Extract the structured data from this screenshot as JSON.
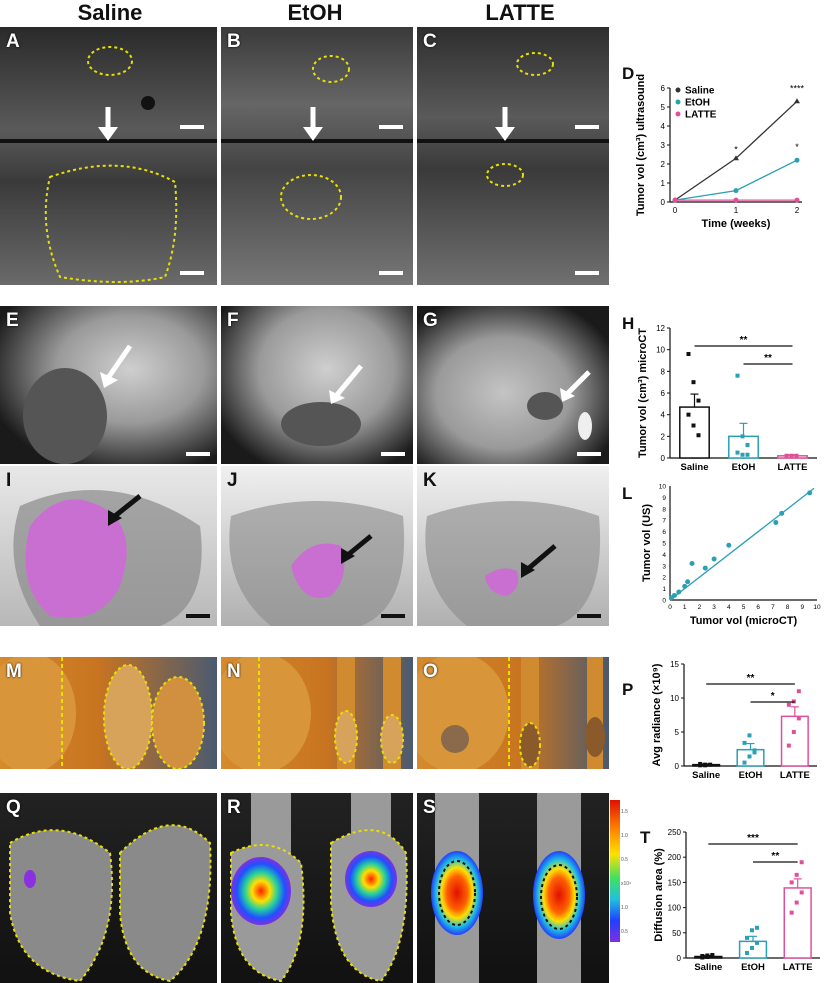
{
  "columns": [
    "Saline",
    "EtOH",
    "LATTE"
  ],
  "panel_labels": [
    "A",
    "B",
    "C",
    "D",
    "E",
    "F",
    "G",
    "H",
    "I",
    "J",
    "K",
    "L",
    "M",
    "N",
    "O",
    "P",
    "Q",
    "R",
    "S",
    "T"
  ],
  "chart_data": [
    {
      "id": "D",
      "type": "line",
      "title": "",
      "xlabel": "Time (weeks)",
      "ylabel": "Tumor vol (cm³) ultrasound",
      "x": [
        0,
        1,
        2
      ],
      "xticks": [
        "0",
        "1",
        "2"
      ],
      "yticks": [
        "0",
        "1",
        "2",
        "3",
        "4",
        "5",
        "6"
      ],
      "ylim": [
        0,
        6
      ],
      "legend_position": "top-left",
      "series": [
        {
          "name": "Saline",
          "values": [
            0.1,
            2.3,
            5.3
          ],
          "color": "#333333"
        },
        {
          "name": "EtOH",
          "values": [
            0.1,
            0.6,
            2.2
          ],
          "color": "#2aa0b5"
        },
        {
          "name": "LATTE",
          "values": [
            0.1,
            0.1,
            0.1
          ],
          "color": "#e0509a"
        }
      ],
      "annotations": [
        "*",
        "****",
        "*"
      ]
    },
    {
      "id": "H",
      "type": "bar",
      "ylabel": "Tumor vol (cm³) microCT",
      "categories": [
        "Saline",
        "EtOH",
        "LATTE"
      ],
      "values": [
        4.7,
        2.0,
        0.2
      ],
      "errors": [
        1.2,
        1.2,
        0.1
      ],
      "yticks": [
        "0",
        "2",
        "4",
        "6",
        "8",
        "10",
        "12"
      ],
      "ylim": [
        0,
        12
      ],
      "points": [
        [
          9.6,
          7.0,
          5.3,
          4.0,
          3.0,
          2.1
        ],
        [
          7.6,
          2.0,
          1.2,
          0.5,
          0.3,
          0.3
        ],
        [
          0.2,
          0.2,
          0.2,
          0.2,
          0.2,
          0.2
        ]
      ],
      "colors": [
        "#111111",
        "#2aa0b5",
        "#e0509a"
      ],
      "significance": [
        "**",
        "**"
      ]
    },
    {
      "id": "L",
      "type": "scatter",
      "xlabel": "Tumor vol (microCT)",
      "ylabel": "Tumor vol (US)",
      "xticks": [
        "0",
        "1",
        "2",
        "3",
        "4",
        "5",
        "6",
        "7",
        "8",
        "9",
        "10"
      ],
      "yticks": [
        "0",
        "1",
        "2",
        "3",
        "4",
        "5",
        "6",
        "7",
        "8",
        "9",
        "10"
      ],
      "xlim": [
        0,
        10
      ],
      "ylim": [
        0,
        10
      ],
      "points": [
        [
          0.1,
          0.2
        ],
        [
          0.3,
          0.4
        ],
        [
          0.6,
          0.7
        ],
        [
          1.0,
          1.2
        ],
        [
          1.2,
          1.6
        ],
        [
          1.5,
          3.2
        ],
        [
          2.4,
          2.8
        ],
        [
          3.0,
          3.6
        ],
        [
          4.0,
          4.8
        ],
        [
          7.2,
          6.8
        ],
        [
          7.6,
          7.6
        ],
        [
          9.5,
          9.4
        ]
      ],
      "fit": [
        [
          0,
          0
        ],
        [
          9.8,
          9.8
        ]
      ],
      "color": "#2aa0b5"
    },
    {
      "id": "P",
      "type": "bar",
      "ylabel": "Avg radiance (×10⁹)",
      "categories": [
        "Saline",
        "EtOH",
        "LATTE"
      ],
      "values": [
        0.2,
        2.4,
        7.3
      ],
      "errors": [
        0.1,
        0.9,
        1.4
      ],
      "yticks": [
        "0",
        "5",
        "10",
        "15"
      ],
      "ylim": [
        0,
        15
      ],
      "points": [
        [
          0.1,
          0.2,
          0.2,
          0.3,
          0.1
        ],
        [
          0.5,
          1.4,
          2.3,
          3.4,
          4.5,
          2.0
        ],
        [
          3.0,
          5.0,
          7.0,
          9.0,
          9.5,
          11.0
        ]
      ],
      "colors": [
        "#111111",
        "#2aa0b5",
        "#e0509a"
      ],
      "significance": [
        "**",
        "*"
      ]
    },
    {
      "id": "T",
      "type": "bar",
      "ylabel": "Diffusion area (%)",
      "categories": [
        "Saline",
        "EtOH",
        "LATTE"
      ],
      "values": [
        3,
        33,
        139
      ],
      "errors": [
        2,
        10,
        18
      ],
      "yticks": [
        "0",
        "50",
        "100",
        "150",
        "200",
        "250"
      ],
      "ylim": [
        0,
        250
      ],
      "points": [
        [
          1,
          2,
          3,
          4,
          5,
          6
        ],
        [
          10,
          20,
          30,
          40,
          55,
          60
        ],
        [
          90,
          110,
          130,
          150,
          165,
          190
        ]
      ],
      "colors": [
        "#111111",
        "#2aa0b5",
        "#e0509a"
      ],
      "significance": [
        "***",
        "**"
      ]
    }
  ],
  "colorbar_ticks": [
    "1.5",
    "1.0",
    "0.5",
    "x10⁹",
    "1.0",
    "0.5"
  ]
}
